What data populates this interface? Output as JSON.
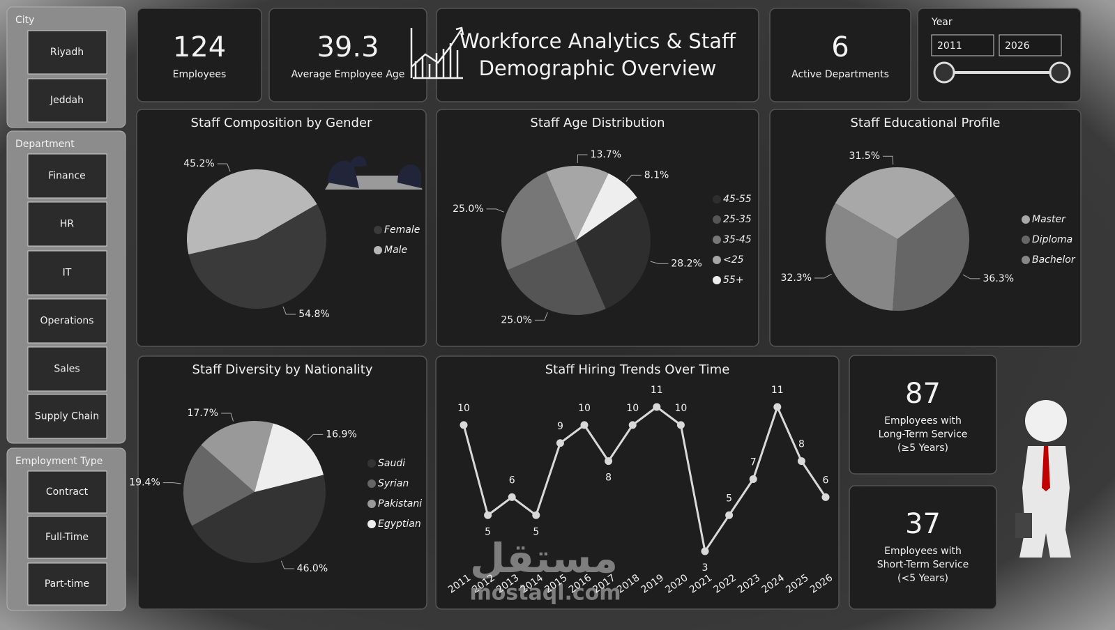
{
  "header": {
    "title": [
      "Workforce Analytics & Staff",
      "Demographic Overview"
    ]
  },
  "slicers": [
    {
      "title": "City",
      "items": [
        "Riyadh",
        "Jeddah"
      ]
    },
    {
      "title": "Department",
      "items": [
        "Finance",
        "HR",
        "IT",
        "Operations",
        "Sales",
        "Supply Chain"
      ]
    },
    {
      "title": "Employment Type",
      "items": [
        "Contract",
        "Full-Time",
        "Part-time"
      ]
    }
  ],
  "kpis": [
    {
      "value": "124",
      "label": [
        "Employees"
      ]
    },
    {
      "value": "39.3",
      "label": [
        "Average Employee Age"
      ]
    },
    {
      "value": "6",
      "label": [
        "Active Departments"
      ]
    },
    {
      "value": "87",
      "label": [
        "Employees with",
        "Long-Term Service",
        "(≥5 Years)"
      ]
    },
    {
      "value": "37",
      "label": [
        "Employees with",
        "Short-Term Service",
        "(<5 Years)"
      ]
    }
  ],
  "year_filter": {
    "title": "Year",
    "from": "2011",
    "to": "2026"
  },
  "watermark": [
    "مستقل",
    "mostaql.com"
  ],
  "chart_data": [
    {
      "type": "pie",
      "title": "Staff Composition by Gender",
      "categories": [
        "Female",
        "Male"
      ],
      "values": [
        54.8,
        45.2
      ],
      "value_labels": [
        "54.8%",
        "45.2%"
      ],
      "colors": [
        "#3a3a3a",
        "#b8b8b8"
      ]
    },
    {
      "type": "pie",
      "title": "Staff Age Distribution",
      "categories": [
        "45-55",
        "25-35",
        "35-45",
        "<25",
        "55+"
      ],
      "values": [
        28.2,
        25.0,
        25.0,
        13.7,
        8.1
      ],
      "value_labels": [
        "28.2%",
        "25.0%",
        "25.0%",
        "13.7%",
        "8.1%"
      ],
      "colors": [
        "#2e2e2e",
        "#555555",
        "#777777",
        "#a6a6a6",
        "#eeeeee"
      ]
    },
    {
      "type": "pie",
      "title": "Staff Educational Profile",
      "categories": [
        "Master",
        "Diploma",
        "Bachelor"
      ],
      "values": [
        31.5,
        36.3,
        32.3
      ],
      "value_labels": [
        "31.5%",
        "36.3%",
        "32.3%"
      ],
      "colors": [
        "#a8a8a8",
        "#666666",
        "#878787"
      ]
    },
    {
      "type": "pie",
      "title": "Staff Diversity by Nationality",
      "categories": [
        "Saudi",
        "Syrian",
        "Pakistani",
        "Egyptian"
      ],
      "values": [
        46.0,
        19.4,
        17.7,
        16.9
      ],
      "value_labels": [
        "46.0%",
        "19.4%",
        "17.7%",
        "16.9%"
      ],
      "colors": [
        "#333333",
        "#666666",
        "#999999",
        "#eeeeee"
      ]
    },
    {
      "type": "line",
      "title": "Staff Hiring Trends Over Time",
      "categories": [
        "2011",
        "2012",
        "2013",
        "2014",
        "2015",
        "2016",
        "2017",
        "2018",
        "2019",
        "2020",
        "2021",
        "2022",
        "2023",
        "2024",
        "2025",
        "2026"
      ],
      "values": [
        10,
        5,
        6,
        5,
        9,
        10,
        8,
        10,
        11,
        10,
        3,
        5,
        7,
        11,
        8,
        6
      ],
      "color": "#d9d9d9"
    }
  ]
}
